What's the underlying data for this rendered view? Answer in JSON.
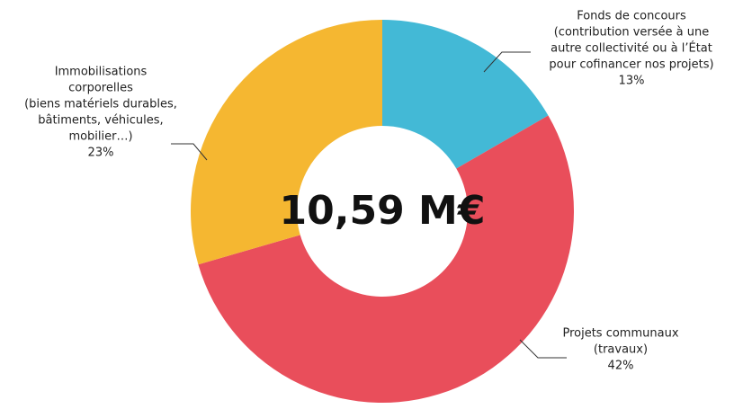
{
  "chart_data": {
    "type": "donut",
    "center_label": "10,59 M€",
    "categories": [
      [
        "Fonds de concours",
        "(contribution versée à une",
        "autre collectivité ou à l’État",
        "pour cofinancer nos projets)"
      ],
      [
        "Projets communaux",
        "(travaux)"
      ],
      [
        "Immobilisations",
        "corporelles",
        "(biens matériels durables,",
        "bâtiments, véhicules,",
        "mobilier…)"
      ]
    ],
    "values": [
      13,
      42,
      23
    ],
    "value_labels": [
      "13%",
      "42%",
      "23%"
    ],
    "colors": [
      "#43b9d6",
      "#e94e5b",
      "#f5b731"
    ]
  }
}
